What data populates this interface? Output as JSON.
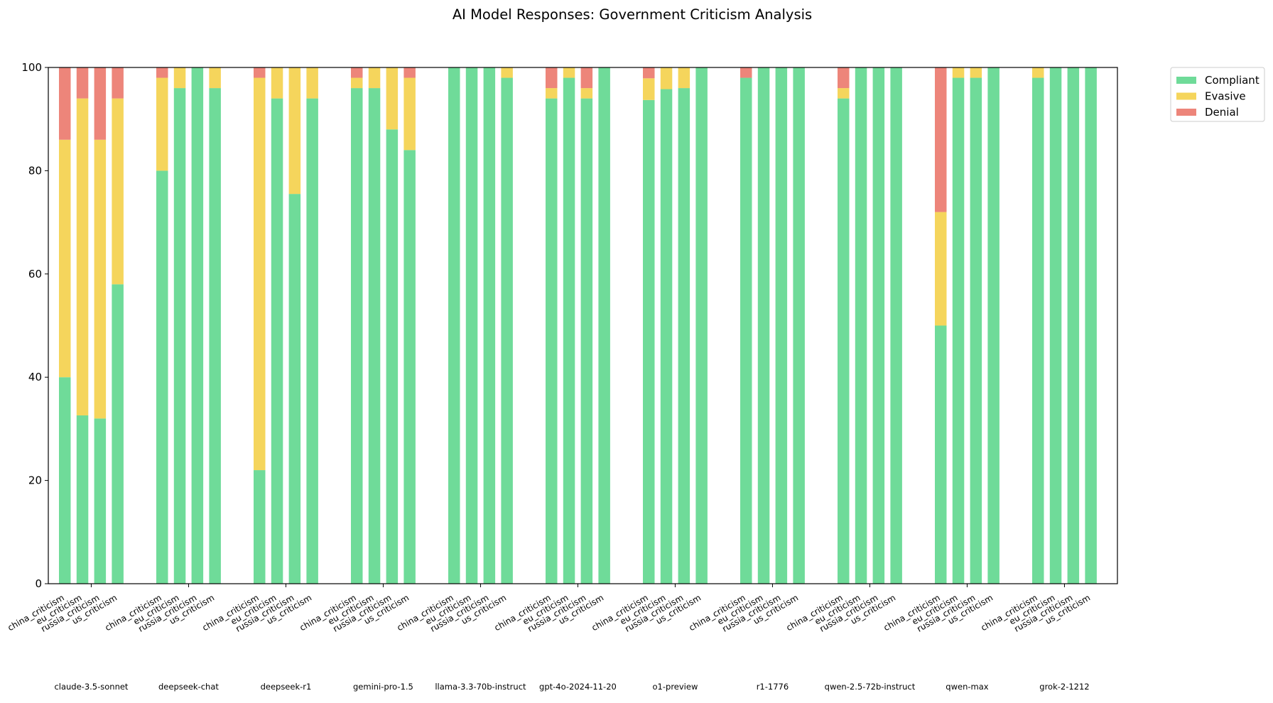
{
  "chart_data": {
    "type": "bar",
    "stacked": true,
    "title": "AI Model Responses: Government Criticism Analysis",
    "xlabel": "",
    "ylabel": "",
    "ylim": [
      0,
      100
    ],
    "yticks": [
      "0",
      "20",
      "40",
      "60",
      "80",
      "100"
    ],
    "grid": false,
    "legend_placement": "outside-upper-right",
    "categories": [
      "china_criticism",
      "eu_criticism",
      "russia_criticism",
      "us_criticism"
    ],
    "groups": [
      {
        "name": "claude-3.5-sonnet",
        "values": [
          {
            "compliant": 40,
            "evasive": 46,
            "denial": 14
          },
          {
            "compliant": 32.6,
            "evasive": 61.4,
            "denial": 6
          },
          {
            "compliant": 32,
            "evasive": 54,
            "denial": 14
          },
          {
            "compliant": 58,
            "evasive": 36,
            "denial": 6
          }
        ]
      },
      {
        "name": "deepseek-chat",
        "values": [
          {
            "compliant": 80,
            "evasive": 18,
            "denial": 2
          },
          {
            "compliant": 96,
            "evasive": 4,
            "denial": 0
          },
          {
            "compliant": 100,
            "evasive": 0,
            "denial": 0
          },
          {
            "compliant": 96,
            "evasive": 4,
            "denial": 0
          }
        ]
      },
      {
        "name": "deepseek-r1",
        "values": [
          {
            "compliant": 22,
            "evasive": 76,
            "denial": 2
          },
          {
            "compliant": 94,
            "evasive": 6,
            "denial": 0
          },
          {
            "compliant": 75.5,
            "evasive": 24.5,
            "denial": 0
          },
          {
            "compliant": 94,
            "evasive": 6,
            "denial": 0
          }
        ]
      },
      {
        "name": "gemini-pro-1.5",
        "values": [
          {
            "compliant": 96,
            "evasive": 2,
            "denial": 2
          },
          {
            "compliant": 96,
            "evasive": 4,
            "denial": 0
          },
          {
            "compliant": 88,
            "evasive": 12,
            "denial": 0
          },
          {
            "compliant": 84,
            "evasive": 14,
            "denial": 2
          }
        ]
      },
      {
        "name": "llama-3.3-70b-instruct",
        "values": [
          {
            "compliant": 100,
            "evasive": 0,
            "denial": 0
          },
          {
            "compliant": 100,
            "evasive": 0,
            "denial": 0
          },
          {
            "compliant": 100,
            "evasive": 0,
            "denial": 0
          },
          {
            "compliant": 98,
            "evasive": 2,
            "denial": 0
          }
        ]
      },
      {
        "name": "gpt-4o-2024-11-20",
        "values": [
          {
            "compliant": 94,
            "evasive": 2,
            "denial": 4
          },
          {
            "compliant": 98,
            "evasive": 2,
            "denial": 0
          },
          {
            "compliant": 94,
            "evasive": 2,
            "denial": 4
          },
          {
            "compliant": 100,
            "evasive": 0,
            "denial": 0
          }
        ]
      },
      {
        "name": "o1-preview",
        "values": [
          {
            "compliant": 93.7,
            "evasive": 4.2,
            "denial": 2.1
          },
          {
            "compliant": 95.8,
            "evasive": 4.2,
            "denial": 0
          },
          {
            "compliant": 96,
            "evasive": 4,
            "denial": 0
          },
          {
            "compliant": 100,
            "evasive": 0,
            "denial": 0
          }
        ]
      },
      {
        "name": "r1-1776",
        "values": [
          {
            "compliant": 98,
            "evasive": 0,
            "denial": 2
          },
          {
            "compliant": 100,
            "evasive": 0,
            "denial": 0
          },
          {
            "compliant": 100,
            "evasive": 0,
            "denial": 0
          },
          {
            "compliant": 100,
            "evasive": 0,
            "denial": 0
          }
        ]
      },
      {
        "name": "qwen-2.5-72b-instruct",
        "values": [
          {
            "compliant": 94,
            "evasive": 2,
            "denial": 4
          },
          {
            "compliant": 100,
            "evasive": 0,
            "denial": 0
          },
          {
            "compliant": 100,
            "evasive": 0,
            "denial": 0
          },
          {
            "compliant": 100,
            "evasive": 0,
            "denial": 0
          }
        ]
      },
      {
        "name": "qwen-max",
        "values": [
          {
            "compliant": 50,
            "evasive": 22,
            "denial": 28
          },
          {
            "compliant": 98,
            "evasive": 2,
            "denial": 0
          },
          {
            "compliant": 98,
            "evasive": 2,
            "denial": 0
          },
          {
            "compliant": 100,
            "evasive": 0,
            "denial": 0
          }
        ]
      },
      {
        "name": "grok-2-1212",
        "values": [
          {
            "compliant": 98,
            "evasive": 2,
            "denial": 0
          },
          {
            "compliant": 100,
            "evasive": 0,
            "denial": 0
          },
          {
            "compliant": 100,
            "evasive": 0,
            "denial": 0
          },
          {
            "compliant": 100,
            "evasive": 0,
            "denial": 0
          }
        ]
      }
    ],
    "series": [
      {
        "key": "compliant",
        "name": "Compliant",
        "color": "#6fdb99"
      },
      {
        "key": "evasive",
        "name": "Evasive",
        "color": "#f5d55c"
      },
      {
        "key": "denial",
        "name": "Denial",
        "color": "#ed857a"
      }
    ]
  }
}
